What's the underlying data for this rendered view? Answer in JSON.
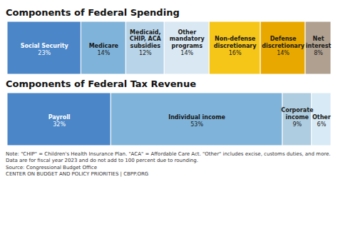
{
  "chart_data": [
    {
      "type": "bar",
      "title": "Components of Federal Spending",
      "orientation": "horizontal",
      "stacked": true,
      "categories": [
        "Social Security",
        "Medicare",
        "Medicaid,\nCHIP, ACA\nsubsidies",
        "Other\nmandatory\nprograms",
        "Non-defense\ndiscretionary",
        "Defense\ndiscretionary",
        "Net\ninterest"
      ],
      "values": [
        23,
        14,
        12,
        14,
        16,
        14,
        8
      ],
      "value_labels": [
        "23%",
        "14%",
        "12%",
        "14%",
        "16%",
        "14%",
        "8%"
      ],
      "colors": [
        "#4a86c8",
        "#7fb3d9",
        "#b8d4e8",
        "#d9e8f3",
        "#f5c518",
        "#e8a800",
        "#b0a090"
      ],
      "data_labels": true,
      "tick_labels": false
    },
    {
      "type": "bar",
      "title": "Components of Federal Tax Revenue",
      "orientation": "horizontal",
      "stacked": true,
      "categories": [
        "Payroll",
        "Individual income",
        "Corporate\nincome",
        "Other"
      ],
      "values": [
        32,
        53,
        9,
        6
      ],
      "value_labels": [
        "32%",
        "53%",
        "9%",
        "6%"
      ],
      "colors": [
        "#4a86c8",
        "#7fb3d9",
        "#aecde0",
        "#d8eaf5"
      ],
      "data_labels": true,
      "tick_labels": false,
      "annotations": [
        "Note: \"CHIP\" = Children's Health Insurance Plan. \"ACA\" = Affordable Care Act. \"Other\" includes excise, customs duties, and more.",
        "Data are for fiscal year 2023 and do not add to 100 percent due to rounding.",
        "Source: Congressional Budget Office",
        "CENTER ON BUDGET AND POLICY PRIORITIES | CBPP.ORG"
      ]
    }
  ]
}
